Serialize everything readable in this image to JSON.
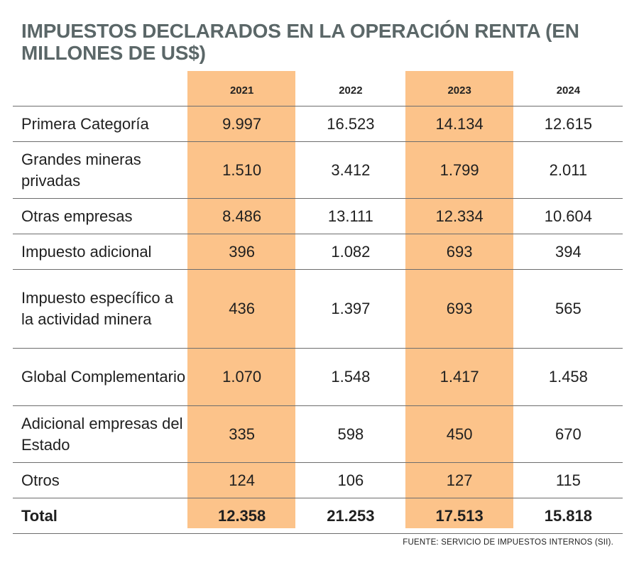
{
  "title": "IMPUESTOS DECLARADOS EN LA OPERACIÓN RENTA (EN MILLONES DE US$)",
  "source": "FUENTE: SERVICIO DE IMPUESTOS INTERNOS (SII).",
  "colors": {
    "highlight": "#fcc38a",
    "title": "#5b6768",
    "rule": "#6d6d6d"
  },
  "chart_data": {
    "type": "table",
    "title": "IMPUESTOS DECLARADOS EN LA OPERACIÓN RENTA (EN MILLONES DE US$)",
    "columns": [
      "2021",
      "2022",
      "2023",
      "2024"
    ],
    "highlighted_columns": [
      "2021",
      "2023"
    ],
    "rows": [
      {
        "label": "Primera Categoría",
        "values": [
          "9.997",
          "16.523",
          "14.134",
          "12.615"
        ]
      },
      {
        "label": "Grandes mineras privadas",
        "values": [
          "1.510",
          "3.412",
          "1.799",
          "2.011"
        ]
      },
      {
        "label": "Otras empresas",
        "values": [
          "8.486",
          "13.111",
          "12.334",
          "10.604"
        ]
      },
      {
        "label": "Impuesto adicional",
        "values": [
          "396",
          "1.082",
          "693",
          "394"
        ]
      },
      {
        "label": "Impuesto específico a la actividad minera",
        "values": [
          "436",
          "1.397",
          "693",
          "565"
        ]
      },
      {
        "label": "Global Complementario",
        "values": [
          "1.070",
          "1.548",
          "1.417",
          "1.458"
        ]
      },
      {
        "label": "Adicional empresas del Estado",
        "values": [
          "335",
          "598",
          "450",
          "670"
        ]
      },
      {
        "label": "Otros",
        "values": [
          "124",
          "106",
          "127",
          "115"
        ]
      },
      {
        "label": "Total",
        "values": [
          "12.358",
          "21.253",
          "17.513",
          "15.818"
        ]
      }
    ]
  }
}
